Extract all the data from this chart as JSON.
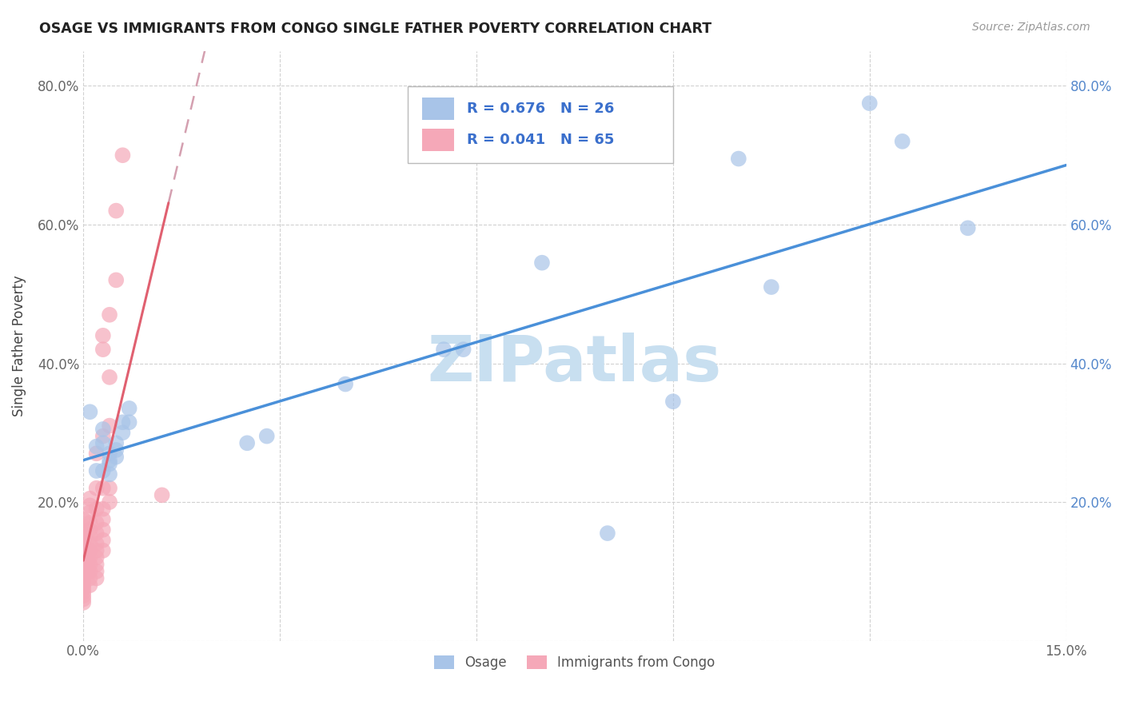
{
  "title": "OSAGE VS IMMIGRANTS FROM CONGO SINGLE FATHER POVERTY CORRELATION CHART",
  "source": "Source: ZipAtlas.com",
  "ylabel": "Single Father Poverty",
  "xlim": [
    0.0,
    0.15
  ],
  "ylim": [
    0.0,
    0.85
  ],
  "xticks": [
    0.0,
    0.03,
    0.06,
    0.09,
    0.12,
    0.15
  ],
  "xtick_labels": [
    "0.0%",
    "",
    "",
    "",
    "",
    "15.0%"
  ],
  "yticks": [
    0.0,
    0.2,
    0.4,
    0.6,
    0.8
  ],
  "ytick_labels": [
    "",
    "20.0%",
    "40.0%",
    "60.0%",
    "80.0%"
  ],
  "osage_R": "0.676",
  "osage_N": "26",
  "congo_R": "0.041",
  "congo_N": "65",
  "osage_color": "#a8c4e8",
  "congo_color": "#f5a8b8",
  "osage_line_color": "#4a90d9",
  "congo_solid_color": "#e06070",
  "congo_dash_color": "#d4a0b0",
  "background_color": "#ffffff",
  "watermark_text": "ZIPatlas",
  "watermark_color": "#c8dff0",
  "osage_points": [
    [
      0.001,
      0.33
    ],
    [
      0.002,
      0.28
    ],
    [
      0.002,
      0.245
    ],
    [
      0.003,
      0.305
    ],
    [
      0.003,
      0.285
    ],
    [
      0.003,
      0.245
    ],
    [
      0.004,
      0.27
    ],
    [
      0.004,
      0.26
    ],
    [
      0.004,
      0.255
    ],
    [
      0.004,
      0.24
    ],
    [
      0.005,
      0.285
    ],
    [
      0.005,
      0.275
    ],
    [
      0.005,
      0.265
    ],
    [
      0.006,
      0.315
    ],
    [
      0.006,
      0.3
    ],
    [
      0.007,
      0.335
    ],
    [
      0.007,
      0.315
    ],
    [
      0.025,
      0.285
    ],
    [
      0.028,
      0.295
    ],
    [
      0.04,
      0.37
    ],
    [
      0.055,
      0.42
    ],
    [
      0.058,
      0.42
    ],
    [
      0.07,
      0.545
    ],
    [
      0.08,
      0.155
    ],
    [
      0.09,
      0.345
    ],
    [
      0.1,
      0.695
    ]
  ],
  "osage_extra_points": [
    [
      0.105,
      0.51
    ],
    [
      0.12,
      0.775
    ],
    [
      0.125,
      0.72
    ],
    [
      0.135,
      0.595
    ]
  ],
  "congo_points": [
    [
      0.0,
      0.175
    ],
    [
      0.0,
      0.165
    ],
    [
      0.0,
      0.155
    ],
    [
      0.0,
      0.15
    ],
    [
      0.0,
      0.145
    ],
    [
      0.0,
      0.14
    ],
    [
      0.0,
      0.135
    ],
    [
      0.0,
      0.13
    ],
    [
      0.0,
      0.125
    ],
    [
      0.0,
      0.12
    ],
    [
      0.0,
      0.115
    ],
    [
      0.0,
      0.11
    ],
    [
      0.0,
      0.105
    ],
    [
      0.0,
      0.1
    ],
    [
      0.0,
      0.095
    ],
    [
      0.0,
      0.09
    ],
    [
      0.0,
      0.085
    ],
    [
      0.0,
      0.08
    ],
    [
      0.0,
      0.075
    ],
    [
      0.0,
      0.07
    ],
    [
      0.0,
      0.065
    ],
    [
      0.0,
      0.06
    ],
    [
      0.0,
      0.055
    ],
    [
      0.001,
      0.195
    ],
    [
      0.001,
      0.185
    ],
    [
      0.001,
      0.17
    ],
    [
      0.001,
      0.16
    ],
    [
      0.001,
      0.15
    ],
    [
      0.001,
      0.14
    ],
    [
      0.001,
      0.13
    ],
    [
      0.001,
      0.12
    ],
    [
      0.001,
      0.11
    ],
    [
      0.001,
      0.1
    ],
    [
      0.001,
      0.09
    ],
    [
      0.001,
      0.08
    ],
    [
      0.002,
      0.27
    ],
    [
      0.002,
      0.22
    ],
    [
      0.002,
      0.19
    ],
    [
      0.002,
      0.17
    ],
    [
      0.002,
      0.155
    ],
    [
      0.002,
      0.14
    ],
    [
      0.002,
      0.13
    ],
    [
      0.002,
      0.12
    ],
    [
      0.002,
      0.11
    ],
    [
      0.002,
      0.1
    ],
    [
      0.002,
      0.09
    ],
    [
      0.003,
      0.44
    ],
    [
      0.003,
      0.42
    ],
    [
      0.003,
      0.295
    ],
    [
      0.003,
      0.22
    ],
    [
      0.003,
      0.19
    ],
    [
      0.003,
      0.175
    ],
    [
      0.003,
      0.16
    ],
    [
      0.003,
      0.145
    ],
    [
      0.003,
      0.13
    ],
    [
      0.004,
      0.47
    ],
    [
      0.004,
      0.38
    ],
    [
      0.004,
      0.31
    ],
    [
      0.004,
      0.22
    ],
    [
      0.004,
      0.2
    ],
    [
      0.005,
      0.62
    ],
    [
      0.005,
      0.52
    ],
    [
      0.006,
      0.7
    ],
    [
      0.001,
      0.205
    ],
    [
      0.012,
      0.21
    ]
  ]
}
